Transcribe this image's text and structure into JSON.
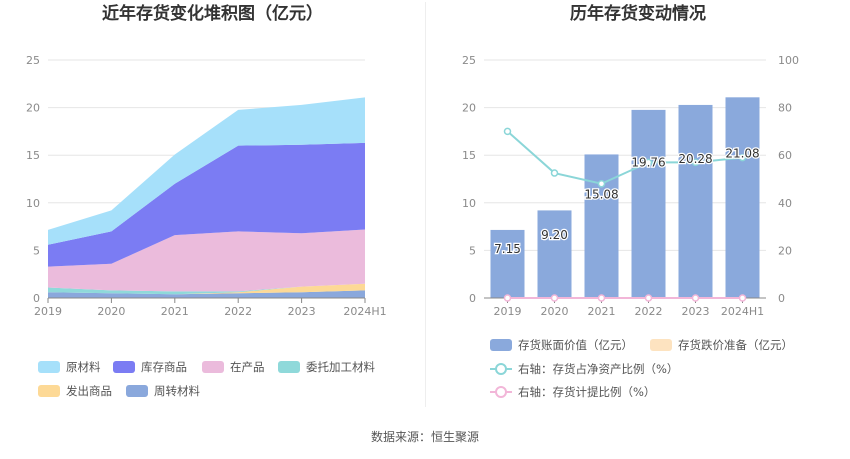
{
  "source_label": "数据来源：恒生聚源",
  "colors": {
    "raw": "#a6e0fa",
    "inventory": "#7b7cf3",
    "wip": "#ebbbdc",
    "consign": "#8fd9da",
    "shipped": "#fdd996",
    "turnover": "#8aa8dc",
    "bar": "#8aa9dc",
    "provision": "#fde3c0",
    "ratio_line": "#8bd6d8",
    "accrual_line": "#f2b6d8",
    "grid": "#e6e6e6",
    "axis": "#888888"
  },
  "chart_data": [
    {
      "type": "area",
      "stacked": true,
      "title": "近年存货变化堆积图（亿元）",
      "categories": [
        "2019",
        "2020",
        "2021",
        "2022",
        "2023",
        "2024H1"
      ],
      "ylim": [
        0,
        25
      ],
      "yticks": [
        0,
        5,
        10,
        15,
        20,
        25
      ],
      "series": [
        {
          "name": "周转材料",
          "key": "turnover",
          "values": [
            0.6,
            0.5,
            0.4,
            0.5,
            0.6,
            0.8
          ]
        },
        {
          "name": "发出商品",
          "key": "shipped",
          "values": [
            0.0,
            0.0,
            0.0,
            0.1,
            0.6,
            0.7
          ]
        },
        {
          "name": "委托加工材料",
          "key": "consign",
          "values": [
            0.5,
            0.3,
            0.3,
            0.1,
            0.0,
            0.0
          ]
        },
        {
          "name": "在产品",
          "key": "wip",
          "values": [
            2.2,
            2.8,
            5.9,
            6.3,
            5.6,
            5.7
          ]
        },
        {
          "name": "库存商品",
          "key": "inventory",
          "values": [
            2.3,
            3.4,
            5.4,
            9.0,
            9.3,
            9.1
          ]
        },
        {
          "name": "原材料",
          "key": "raw",
          "values": [
            1.55,
            2.2,
            3.08,
            3.76,
            4.18,
            4.78
          ]
        }
      ],
      "legend": [
        {
          "name": "原材料",
          "key": "raw"
        },
        {
          "name": "库存商品",
          "key": "inventory"
        },
        {
          "name": "在产品",
          "key": "wip"
        },
        {
          "name": "委托加工材料",
          "key": "consign"
        },
        {
          "name": "发出商品",
          "key": "shipped"
        },
        {
          "name": "周转材料",
          "key": "turnover"
        }
      ]
    },
    {
      "type": "bar",
      "title": "历年存货变动情况",
      "categories": [
        "2019",
        "2020",
        "2021",
        "2022",
        "2023",
        "2024H1"
      ],
      "ylim": [
        0,
        25
      ],
      "yticks": [
        0,
        5,
        10,
        15,
        20,
        25
      ],
      "y2lim": [
        0,
        100
      ],
      "y2ticks": [
        0,
        20,
        40,
        60,
        80,
        100
      ],
      "series": [
        {
          "name": "存货账面价值（亿元）",
          "kind": "bar",
          "axis": "left",
          "values": [
            7.15,
            9.2,
            15.08,
            19.76,
            20.28,
            21.08
          ],
          "labels": [
            "7.15",
            "9.20",
            "15.08",
            "19.76",
            "20.28",
            "21.08"
          ]
        },
        {
          "name": "存货跌价准备（亿元）",
          "kind": "bar",
          "axis": "left",
          "values": [
            0,
            0,
            0,
            0,
            0,
            0
          ]
        },
        {
          "name": "右轴：存货占净资产比例（%）",
          "kind": "line",
          "axis": "right",
          "values": [
            70,
            52.5,
            48,
            57,
            57,
            59
          ]
        },
        {
          "name": "右轴：存货计提比例（%）",
          "kind": "line",
          "axis": "right",
          "values": [
            0,
            0,
            0,
            0,
            0,
            0
          ]
        }
      ]
    }
  ]
}
